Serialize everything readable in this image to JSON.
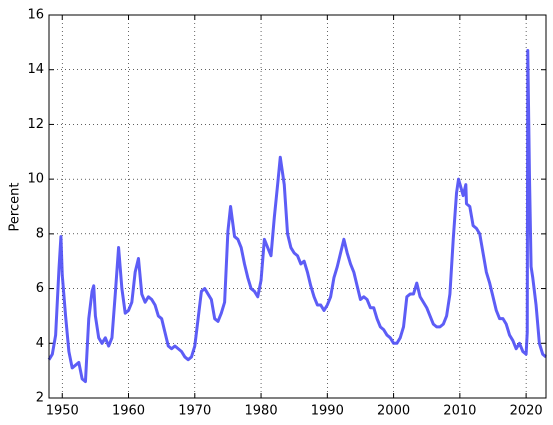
{
  "chart_data": {
    "type": "line",
    "y_label": "Percent",
    "x": [
      1948.0,
      1948.5,
      1949.0,
      1949.5,
      1949.8,
      1950.0,
      1950.5,
      1951.0,
      1951.5,
      1952.0,
      1952.5,
      1953.0,
      1953.5,
      1954.0,
      1954.5,
      1954.75,
      1955.0,
      1955.5,
      1956.0,
      1956.5,
      1957.0,
      1957.5,
      1958.0,
      1958.5,
      1959.0,
      1959.5,
      1960.0,
      1960.5,
      1961.0,
      1961.5,
      1962.0,
      1962.5,
      1963.0,
      1963.5,
      1964.0,
      1964.5,
      1965.0,
      1965.5,
      1966.0,
      1966.5,
      1967.0,
      1967.5,
      1968.0,
      1968.5,
      1969.0,
      1969.5,
      1970.0,
      1970.5,
      1971.0,
      1971.5,
      1972.0,
      1972.5,
      1973.0,
      1973.5,
      1974.0,
      1974.5,
      1975.0,
      1975.4,
      1976.0,
      1976.5,
      1977.0,
      1977.5,
      1978.0,
      1978.5,
      1979.0,
      1979.5,
      1980.0,
      1980.5,
      1981.0,
      1981.5,
      1982.0,
      1982.5,
      1982.9,
      1983.5,
      1984.0,
      1984.5,
      1985.0,
      1985.5,
      1986.0,
      1986.5,
      1987.0,
      1987.5,
      1988.0,
      1988.5,
      1989.0,
      1989.5,
      1990.0,
      1990.5,
      1991.0,
      1991.5,
      1992.0,
      1992.5,
      1993.0,
      1993.5,
      1994.0,
      1994.5,
      1995.0,
      1995.5,
      1996.0,
      1996.5,
      1997.0,
      1997.5,
      1998.0,
      1998.5,
      1999.0,
      1999.5,
      2000.0,
      2000.5,
      2001.0,
      2001.5,
      2002.0,
      2002.5,
      2003.0,
      2003.5,
      2004.0,
      2004.5,
      2005.0,
      2005.5,
      2006.0,
      2006.5,
      2007.0,
      2007.5,
      2008.0,
      2008.5,
      2009.0,
      2009.5,
      2009.8,
      2010.5,
      2010.9,
      2011.0,
      2011.5,
      2012.0,
      2012.5,
      2013.0,
      2013.5,
      2014.0,
      2014.5,
      2015.0,
      2015.5,
      2016.0,
      2016.5,
      2017.0,
      2017.5,
      2018.0,
      2018.5,
      2019.0,
      2019.5,
      2020.0,
      2020.17,
      2020.25,
      2020.5,
      2020.75,
      2021.0,
      2021.5,
      2022.0,
      2022.5,
      2023.0
    ],
    "series": [
      {
        "color": "#4b4bf5",
        "values": [
          3.4,
          3.6,
          4.3,
          6.7,
          7.9,
          6.5,
          5.0,
          3.7,
          3.1,
          3.2,
          3.3,
          2.7,
          2.6,
          4.9,
          5.9,
          6.1,
          5.0,
          4.2,
          4.0,
          4.2,
          3.9,
          4.2,
          5.8,
          7.5,
          6.0,
          5.1,
          5.2,
          5.5,
          6.6,
          7.1,
          5.8,
          5.5,
          5.7,
          5.6,
          5.4,
          5.0,
          4.9,
          4.4,
          3.9,
          3.8,
          3.9,
          3.8,
          3.7,
          3.5,
          3.4,
          3.5,
          3.9,
          4.9,
          5.9,
          6.0,
          5.8,
          5.6,
          4.9,
          4.8,
          5.1,
          5.5,
          8.1,
          9.0,
          7.9,
          7.8,
          7.5,
          6.9,
          6.4,
          6.0,
          5.9,
          5.7,
          6.3,
          7.8,
          7.5,
          7.2,
          8.6,
          9.8,
          10.8,
          9.8,
          8.0,
          7.5,
          7.3,
          7.2,
          6.9,
          7.0,
          6.6,
          6.1,
          5.7,
          5.4,
          5.4,
          5.2,
          5.4,
          5.7,
          6.4,
          6.8,
          7.3,
          7.8,
          7.3,
          6.9,
          6.6,
          6.1,
          5.6,
          5.7,
          5.6,
          5.3,
          5.3,
          4.9,
          4.6,
          4.5,
          4.3,
          4.2,
          4.0,
          4.0,
          4.2,
          4.6,
          5.7,
          5.8,
          5.8,
          6.2,
          5.7,
          5.5,
          5.3,
          5.0,
          4.7,
          4.6,
          4.6,
          4.7,
          5.0,
          5.8,
          7.8,
          9.5,
          10.0,
          9.4,
          9.8,
          9.1,
          9.0,
          8.3,
          8.2,
          8.0,
          7.3,
          6.6,
          6.2,
          5.7,
          5.2,
          4.9,
          4.9,
          4.7,
          4.3,
          4.1,
          3.8,
          4.0,
          3.7,
          3.6,
          4.4,
          14.7,
          10.2,
          6.8,
          6.4,
          5.4,
          4.0,
          3.6,
          3.5
        ]
      }
    ],
    "xlim": [
      1948,
      2023
    ],
    "xticks": [
      1950,
      1960,
      1970,
      1980,
      1990,
      2000,
      2010,
      2020
    ],
    "ylim": [
      2,
      16
    ],
    "yticks": [
      2,
      4,
      6,
      8,
      10,
      12,
      14,
      16
    ],
    "grid": true
  }
}
